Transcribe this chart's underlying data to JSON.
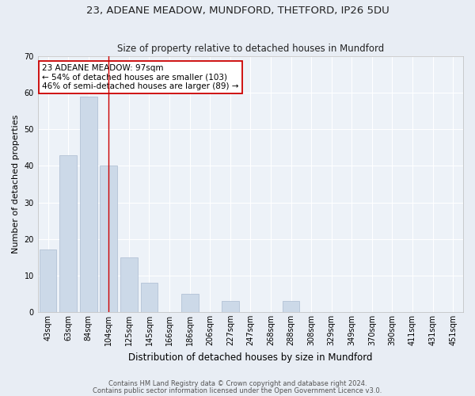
{
  "title1": "23, ADEANE MEADOW, MUNDFORD, THETFORD, IP26 5DU",
  "title2": "Size of property relative to detached houses in Mundford",
  "xlabel": "Distribution of detached houses by size in Mundford",
  "ylabel": "Number of detached properties",
  "categories": [
    "43sqm",
    "63sqm",
    "84sqm",
    "104sqm",
    "125sqm",
    "145sqm",
    "166sqm",
    "186sqm",
    "206sqm",
    "227sqm",
    "247sqm",
    "268sqm",
    "288sqm",
    "308sqm",
    "329sqm",
    "349sqm",
    "370sqm",
    "390sqm",
    "411sqm",
    "431sqm",
    "451sqm"
  ],
  "values": [
    17,
    43,
    59,
    40,
    15,
    8,
    0,
    5,
    0,
    3,
    0,
    0,
    3,
    0,
    0,
    0,
    0,
    0,
    0,
    0,
    0
  ],
  "bar_color": "#ccd9e8",
  "bar_edge_color": "#aabbd0",
  "vline_x": 3,
  "vline_color": "#cc0000",
  "ylim": [
    0,
    70
  ],
  "yticks": [
    0,
    10,
    20,
    30,
    40,
    50,
    60,
    70
  ],
  "annotation_text": "23 ADEANE MEADOW: 97sqm\n← 54% of detached houses are smaller (103)\n46% of semi-detached houses are larger (89) →",
  "annotation_box_color": "#ffffff",
  "annotation_box_edge": "#cc0000",
  "footer1": "Contains HM Land Registry data © Crown copyright and database right 2024.",
  "footer2": "Contains public sector information licensed under the Open Government Licence v3.0.",
  "bg_color": "#e8edf4",
  "plot_bg_color": "#edf2f8",
  "grid_color": "#ffffff",
  "title1_fontsize": 9.5,
  "title2_fontsize": 8.5,
  "xlabel_fontsize": 8.5,
  "ylabel_fontsize": 8,
  "tick_fontsize": 7,
  "ann_fontsize": 7.5,
  "footer_fontsize": 6
}
